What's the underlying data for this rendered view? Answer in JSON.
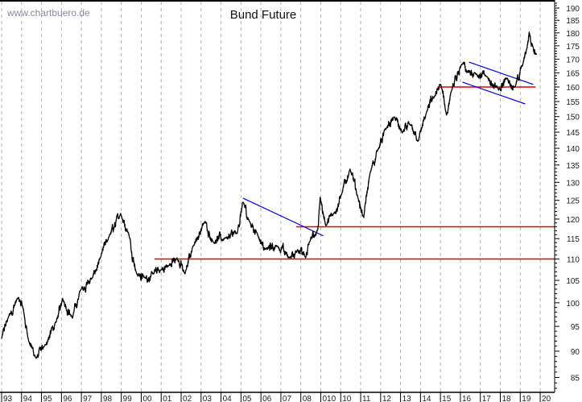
{
  "chart_data": {
    "type": "line",
    "title": "Bund Future",
    "watermark": "www.chartbuero.de",
    "xlabel": "",
    "ylabel": "",
    "y_scale": "log",
    "ylim": [
      82,
      193
    ],
    "xlim": [
      1993,
      2020
    ],
    "grid": "vertical dashed",
    "x_tick_labels": [
      "93",
      "94",
      "95",
      "96",
      "97",
      "98",
      "99",
      "00",
      "01",
      "02",
      "03",
      "04",
      "05",
      "06",
      "07",
      "08",
      "010",
      "10",
      "11",
      "12",
      "13",
      "14",
      "15",
      "16",
      "17",
      "18",
      "19",
      "20"
    ],
    "y_tick_labels": [
      85,
      90,
      95,
      100,
      105,
      110,
      115,
      120,
      125,
      130,
      135,
      140,
      145,
      150,
      155,
      160,
      165,
      170,
      175,
      180,
      185,
      190
    ],
    "colors": {
      "series": "#000000",
      "support": "#e00000",
      "trend": "#0000e0",
      "grid": "#b0b0b0"
    },
    "series": [
      {
        "values": [
          [
            1993.0,
            92.5
          ],
          [
            1993.32,
            96.7
          ],
          [
            1993.81,
            101.0
          ],
          [
            1994.05,
            99.3
          ],
          [
            1994.33,
            92.5
          ],
          [
            1994.73,
            88.6
          ],
          [
            1995.14,
            90.9
          ],
          [
            1995.74,
            95.9
          ],
          [
            1996.06,
            101.0
          ],
          [
            1996.55,
            96.7
          ],
          [
            1996.95,
            102.8
          ],
          [
            1997.56,
            105.6
          ],
          [
            1997.96,
            110.3
          ],
          [
            1998.36,
            115.2
          ],
          [
            1998.97,
            121.5
          ],
          [
            1999.37,
            116.3
          ],
          [
            1999.77,
            106.5
          ],
          [
            2000.18,
            105.6
          ],
          [
            2000.58,
            106.5
          ],
          [
            2000.98,
            107.4
          ],
          [
            2001.39,
            108.4
          ],
          [
            2001.79,
            110.3
          ],
          [
            2002.19,
            106.5
          ],
          [
            2002.6,
            113.2
          ],
          [
            2003.2,
            119.4
          ],
          [
            2003.6,
            114.2
          ],
          [
            2004.21,
            115.2
          ],
          [
            2004.81,
            116.3
          ],
          [
            2005.1,
            124.5
          ],
          [
            2005.42,
            119.4
          ],
          [
            2005.82,
            116.3
          ],
          [
            2006.23,
            112.3
          ],
          [
            2006.83,
            113.2
          ],
          [
            2007.44,
            110.3
          ],
          [
            2007.84,
            112.3
          ],
          [
            2008.24,
            110.3
          ],
          [
            2008.44,
            114.2
          ],
          [
            2008.85,
            117.3
          ],
          [
            2008.97,
            125.8
          ],
          [
            2009.25,
            118.3
          ],
          [
            2009.65,
            121.5
          ],
          [
            2010.06,
            126.9
          ],
          [
            2010.46,
            133.8
          ],
          [
            2010.86,
            125.8
          ],
          [
            2011.15,
            120.4
          ],
          [
            2011.47,
            132.6
          ],
          [
            2011.87,
            139.8
          ],
          [
            2012.27,
            146.0
          ],
          [
            2012.68,
            149.9
          ],
          [
            2013.08,
            144.8
          ],
          [
            2013.48,
            147.3
          ],
          [
            2013.89,
            142.3
          ],
          [
            2014.29,
            151.2
          ],
          [
            2014.69,
            156.7
          ],
          [
            2015.02,
            160.8
          ],
          [
            2015.31,
            150.5
          ],
          [
            2015.52,
            158.0
          ],
          [
            2016.12,
            168.5
          ],
          [
            2016.32,
            165.1
          ],
          [
            2016.73,
            165.1
          ],
          [
            2017.31,
            163.7
          ],
          [
            2017.92,
            158.9
          ],
          [
            2018.32,
            163.1
          ],
          [
            2018.73,
            160.0
          ],
          [
            2019.13,
            168.0
          ],
          [
            2019.33,
            174.0
          ],
          [
            2019.45,
            180.3
          ],
          [
            2019.61,
            175.6
          ],
          [
            2019.81,
            171.6
          ]
        ]
      }
    ],
    "annotations": [
      {
        "kind": "horizontal",
        "color": "support",
        "y": 110,
        "x_from": 2000.66,
        "x_to": 2020.75
      },
      {
        "kind": "horizontal",
        "color": "support",
        "y": 118,
        "x_from": 2007.76,
        "x_to": 2020.75
      },
      {
        "kind": "horizontal",
        "color": "support",
        "y": 160,
        "x_from": 2014.85,
        "x_to": 2019.77
      },
      {
        "kind": "trendline",
        "color": "trend",
        "from": [
          2005.1,
          125.6
        ],
        "to": [
          2009.13,
          115.7
        ]
      },
      {
        "kind": "trendline",
        "color": "trend",
        "from": [
          2016.43,
          168.9
        ],
        "to": [
          2019.65,
          160.9
        ]
      },
      {
        "kind": "trendline",
        "color": "trend",
        "from": [
          2016.1,
          161.7
        ],
        "to": [
          2019.25,
          154.2
        ]
      }
    ]
  }
}
